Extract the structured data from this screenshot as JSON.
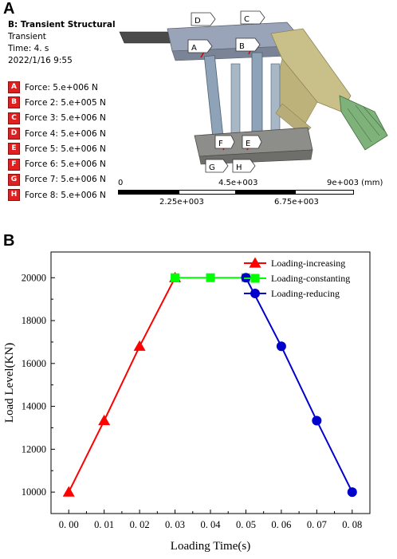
{
  "panel_a": {
    "letter": "A",
    "header": {
      "title": "B: Transient Structural",
      "analysis": "Transient",
      "time": "Time: 4. s",
      "date": "2022/1/16 9:55"
    },
    "forces": [
      {
        "tag": "A",
        "label": "Force: 5.e+006 N"
      },
      {
        "tag": "B",
        "label": "Force 2: 5.e+005 N"
      },
      {
        "tag": "C",
        "label": "Force 3: 5.e+006 N"
      },
      {
        "tag": "D",
        "label": "Force 4: 5.e+006 N"
      },
      {
        "tag": "E",
        "label": "Force 5: 5.e+006 N"
      },
      {
        "tag": "F",
        "label": "Force 6: 5.e+006 N"
      },
      {
        "tag": "G",
        "label": "Force 7: 5.e+006 N"
      },
      {
        "tag": "H",
        "label": "Force 8: 5.e+006 N"
      }
    ],
    "model_callouts": [
      "A",
      "B",
      "C",
      "D",
      "E",
      "F",
      "G",
      "H"
    ],
    "scale_bar": {
      "top_labels": [
        "0",
        "4.5e+003",
        "9e+003 (mm)"
      ],
      "bottom_labels": [
        "2.25e+003",
        "6.75e+003"
      ]
    }
  },
  "panel_b": {
    "letter": "B"
  },
  "chart_data": {
    "type": "line",
    "xlabel": "Loading Time(s)",
    "ylabel": "Load  Level(KN)",
    "xlim": [
      -0.005,
      0.085
    ],
    "ylim": [
      9000,
      21200
    ],
    "x_ticks": [
      0.0,
      0.01,
      0.02,
      0.03,
      0.04,
      0.05,
      0.06,
      0.07,
      0.08
    ],
    "x_tick_labels": [
      "0. 00",
      "0. 01",
      "0. 02",
      "0. 03",
      "0. 04",
      "0. 05",
      "0. 06",
      "0. 07",
      "0. 08"
    ],
    "y_ticks": [
      10000,
      12000,
      14000,
      16000,
      18000,
      20000
    ],
    "y_tick_labels": [
      "10000",
      "12000",
      "14000",
      "16000",
      "18000",
      "20000"
    ],
    "grid": false,
    "legend_position": "top-right",
    "series": [
      {
        "name": "Loading-increasing",
        "color": "#ff0000",
        "marker": "triangle",
        "x": [
          0.0,
          0.01,
          0.02,
          0.03
        ],
        "y": [
          10000,
          13333,
          16800,
          20000
        ]
      },
      {
        "name": "Loading-constanting",
        "color": "#00ff00",
        "marker": "square",
        "x": [
          0.03,
          0.04,
          0.05
        ],
        "y": [
          20000,
          20000,
          20000
        ]
      },
      {
        "name": "Loading-reducing",
        "color": "#0000cc",
        "marker": "circle",
        "x": [
          0.05,
          0.06,
          0.07,
          0.08
        ],
        "y": [
          20000,
          16800,
          13333,
          10000
        ]
      }
    ]
  }
}
